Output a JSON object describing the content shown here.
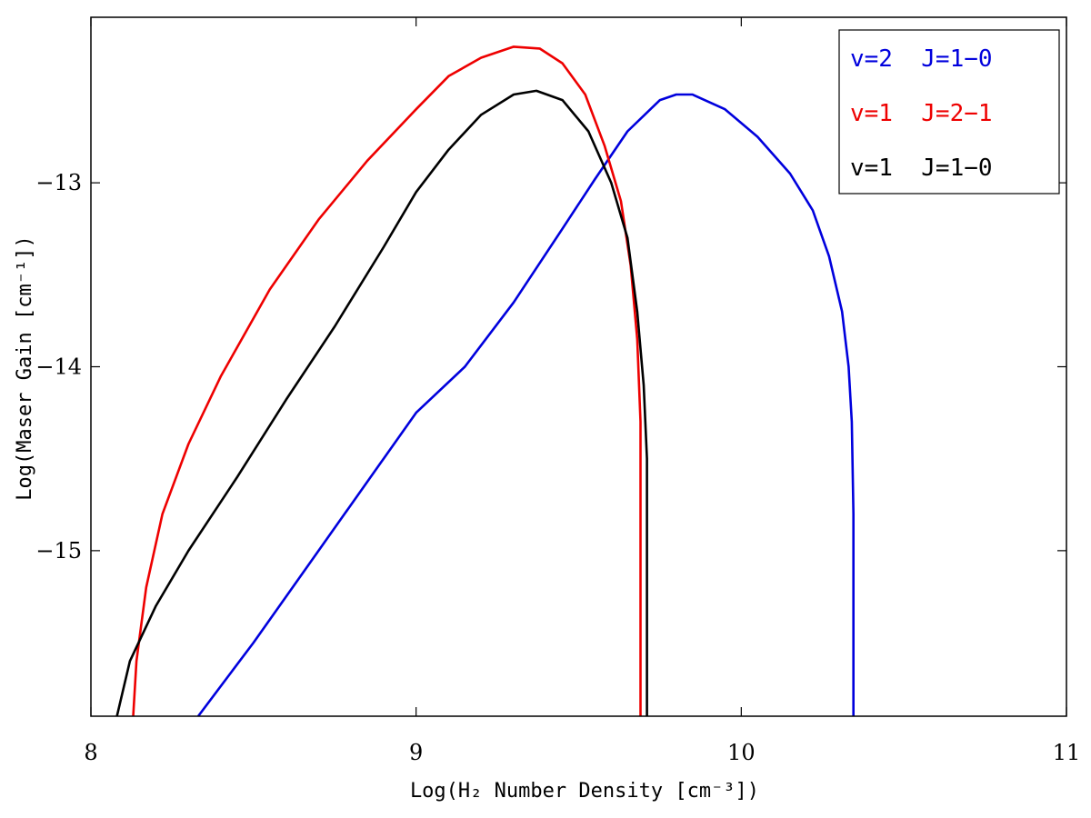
{
  "chart_data": {
    "type": "line",
    "xlabel": "Log(H₂ Number Density [cm⁻³])",
    "ylabel": "Log(Maser Gain [cm⁻¹])",
    "xlim": [
      8,
      11
    ],
    "ylim": [
      -15.9,
      -12.1
    ],
    "x_ticks": [
      8,
      9,
      10,
      11
    ],
    "x_tick_labels": [
      "8",
      "9",
      "10",
      "11"
    ],
    "y_ticks": [
      -13,
      -14,
      -15
    ],
    "y_tick_labels": [
      "−13",
      "−14",
      "−15"
    ],
    "grid": false,
    "legend_position": "top-right",
    "series": [
      {
        "name": "v=2  J=1−0",
        "color": "#0000dd",
        "points": [
          [
            8.33,
            -15.9
          ],
          [
            8.5,
            -15.5
          ],
          [
            8.7,
            -15.0
          ],
          [
            8.9,
            -14.5
          ],
          [
            9.0,
            -14.25
          ],
          [
            9.15,
            -14.0
          ],
          [
            9.3,
            -13.65
          ],
          [
            9.45,
            -13.25
          ],
          [
            9.55,
            -12.98
          ],
          [
            9.65,
            -12.72
          ],
          [
            9.75,
            -12.55
          ],
          [
            9.8,
            -12.52
          ],
          [
            9.85,
            -12.52
          ],
          [
            9.95,
            -12.6
          ],
          [
            10.05,
            -12.75
          ],
          [
            10.15,
            -12.95
          ],
          [
            10.22,
            -13.15
          ],
          [
            10.27,
            -13.4
          ],
          [
            10.31,
            -13.7
          ],
          [
            10.33,
            -14.0
          ],
          [
            10.34,
            -14.3
          ],
          [
            10.345,
            -14.8
          ],
          [
            10.345,
            -15.9
          ]
        ]
      },
      {
        "name": "v=1  J=2−1",
        "color": "#ee0000",
        "points": [
          [
            8.13,
            -15.9
          ],
          [
            8.14,
            -15.6
          ],
          [
            8.17,
            -15.2
          ],
          [
            8.22,
            -14.8
          ],
          [
            8.3,
            -14.42
          ],
          [
            8.4,
            -14.05
          ],
          [
            8.55,
            -13.58
          ],
          [
            8.7,
            -13.2
          ],
          [
            8.85,
            -12.88
          ],
          [
            9.0,
            -12.6
          ],
          [
            9.1,
            -12.42
          ],
          [
            9.2,
            -12.32
          ],
          [
            9.3,
            -12.26
          ],
          [
            9.38,
            -12.27
          ],
          [
            9.45,
            -12.35
          ],
          [
            9.52,
            -12.52
          ],
          [
            9.58,
            -12.8
          ],
          [
            9.63,
            -13.1
          ],
          [
            9.66,
            -13.45
          ],
          [
            9.68,
            -13.85
          ],
          [
            9.69,
            -14.3
          ],
          [
            9.69,
            -15.9
          ]
        ]
      },
      {
        "name": "v=1  J=1−0",
        "color": "#000000",
        "points": [
          [
            8.08,
            -15.9
          ],
          [
            8.12,
            -15.6
          ],
          [
            8.2,
            -15.3
          ],
          [
            8.3,
            -15.0
          ],
          [
            8.45,
            -14.6
          ],
          [
            8.6,
            -14.18
          ],
          [
            8.75,
            -13.78
          ],
          [
            8.9,
            -13.35
          ],
          [
            9.0,
            -13.05
          ],
          [
            9.1,
            -12.82
          ],
          [
            9.2,
            -12.63
          ],
          [
            9.3,
            -12.52
          ],
          [
            9.37,
            -12.5
          ],
          [
            9.45,
            -12.55
          ],
          [
            9.53,
            -12.72
          ],
          [
            9.6,
            -13.0
          ],
          [
            9.65,
            -13.3
          ],
          [
            9.68,
            -13.7
          ],
          [
            9.7,
            -14.1
          ],
          [
            9.71,
            -14.5
          ],
          [
            9.71,
            -15.9
          ]
        ]
      }
    ]
  }
}
